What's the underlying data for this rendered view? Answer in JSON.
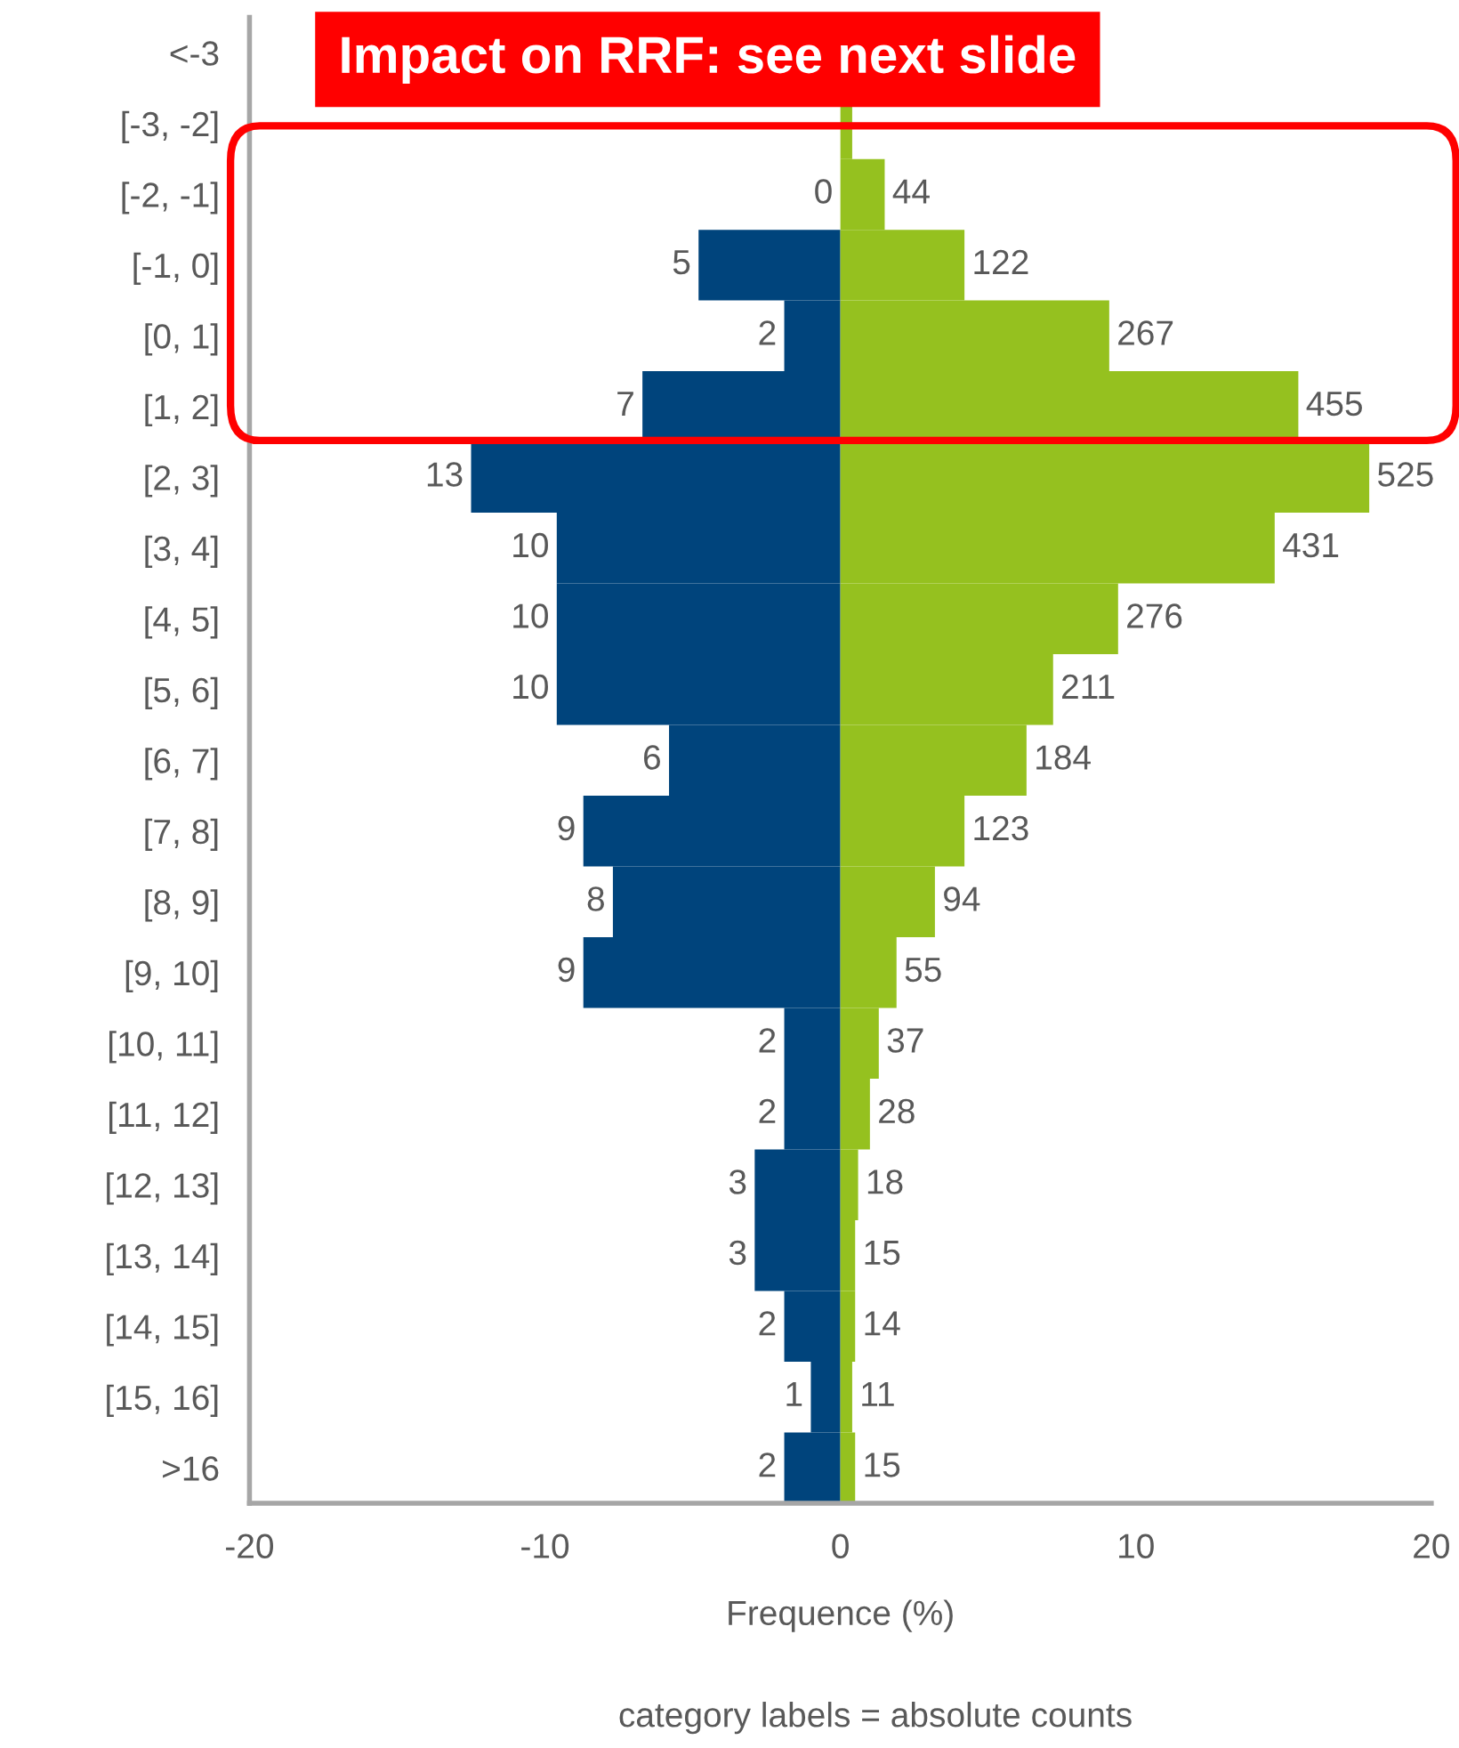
{
  "chart_data": {
    "type": "bar",
    "orientation": "horizontal",
    "stacked": true,
    "categories": [
      "<-3",
      "[-3, -2]",
      "[-2, -1]",
      "[-1, 0]",
      "[0, 1]",
      "[1, 2]",
      "[2, 3]",
      "[3, 4]",
      "[4, 5]",
      "[5, 6]",
      "[6, 7]",
      "[7, 8]",
      "[8, 9]",
      "[9, 10]",
      "[10, 11]",
      "[11, 12]",
      "[12, 13]",
      "[13, 14]",
      "[14, 15]",
      "[15, 16]",
      ">16"
    ],
    "series": [
      {
        "color": "#00447c",
        "values": [
          null,
          0,
          0,
          -4.8,
          -1.9,
          -6.7,
          -12.5,
          -9.6,
          -9.6,
          -9.6,
          -5.8,
          -8.7,
          -7.7,
          -8.7,
          -1.9,
          -1.9,
          -2.9,
          -2.9,
          -1.9,
          -1.0,
          -1.9
        ]
      },
      {
        "color": "#95c11f",
        "values": [
          null,
          0.4,
          1.5,
          4.2,
          9.1,
          15.5,
          17.9,
          14.7,
          9.4,
          7.2,
          6.3,
          4.2,
          3.2,
          1.9,
          1.3,
          1.0,
          0.6,
          0.5,
          0.5,
          0.4,
          0.5
        ]
      }
    ],
    "xlim": [
      -20,
      20
    ],
    "xticks": [
      -20,
      -10,
      0,
      10,
      20
    ],
    "xlabel": "Frequence (%)",
    "annotations": [
      "category labels = absolute counts",
      "Impact on RRF: see next slide",
      {
        "text": "0",
        "x": 0,
        "y": "[-2, -1]"
      },
      {
        "text": "5",
        "x": -4.8,
        "y": "[-1, 0]"
      },
      {
        "text": "2",
        "x": -1.9,
        "y": "[0, 1]"
      },
      {
        "text": "7",
        "x": -6.7,
        "y": "[1, 2]"
      },
      {
        "text": "13",
        "x": -12.5,
        "y": "[2, 3]"
      },
      {
        "text": "10",
        "x": -9.6,
        "y": "[3, 4]"
      },
      {
        "text": "10",
        "x": -9.6,
        "y": "[4, 5]"
      },
      {
        "text": "10",
        "x": -9.6,
        "y": "[5, 6]"
      },
      {
        "text": "6",
        "x": -5.8,
        "y": "[6, 7]"
      },
      {
        "text": "9",
        "x": -8.7,
        "y": "[7, 8]"
      },
      {
        "text": "8",
        "x": -7.7,
        "y": "[8, 9]"
      },
      {
        "text": "9",
        "x": -8.7,
        "y": "[9, 10]"
      },
      {
        "text": "2",
        "x": -1.9,
        "y": "[10, 11]"
      },
      {
        "text": "2",
        "x": -1.9,
        "y": "[11, 12]"
      },
      {
        "text": "3",
        "x": -2.9,
        "y": "[12, 13]"
      },
      {
        "text": "3",
        "x": -2.9,
        "y": "[13, 14]"
      },
      {
        "text": "2",
        "x": -1.9,
        "y": "[14, 15]"
      },
      {
        "text": "1",
        "x": -1.0,
        "y": "[15, 16]"
      },
      {
        "text": "2",
        "x": -1.9,
        "y": ">16"
      },
      {
        "text": "44",
        "x": 1.5,
        "y": "[-2, -1]"
      },
      {
        "text": "122",
        "x": 4.2,
        "y": "[-1, 0]"
      },
      {
        "text": "267",
        "x": 9.1,
        "y": "[0, 1]"
      },
      {
        "text": "455",
        "x": 15.5,
        "y": "[1, 2]"
      },
      {
        "text": "525",
        "x": 17.9,
        "y": "[2, 3]"
      },
      {
        "text": "431",
        "x": 14.7,
        "y": "[3, 4]"
      },
      {
        "text": "276",
        "x": 9.4,
        "y": "[4, 5]"
      },
      {
        "text": "211",
        "x": 7.2,
        "y": "[5, 6]"
      },
      {
        "text": "184",
        "x": 6.3,
        "y": "[6, 7]"
      },
      {
        "text": "123",
        "x": 4.2,
        "y": "[7, 8]"
      },
      {
        "text": "94",
        "x": 3.2,
        "y": "[8, 9]"
      },
      {
        "text": "55",
        "x": 1.9,
        "y": "[9, 10]"
      },
      {
        "text": "37",
        "x": 1.3,
        "y": "[10, 11]"
      },
      {
        "text": "28",
        "x": 1.0,
        "y": "[11, 12]"
      },
      {
        "text": "18",
        "x": 0.6,
        "y": "[12, 13]"
      },
      {
        "text": "15",
        "x": 0.5,
        "y": "[13, 14]"
      },
      {
        "text": "14",
        "x": 0.5,
        "y": "[14, 15]"
      },
      {
        "text": "11",
        "x": 0.4,
        "y": "[15, 16]"
      },
      {
        "text": "15",
        "x": 0.5,
        "y": ">16"
      }
    ],
    "grid": false,
    "legend": false
  }
}
